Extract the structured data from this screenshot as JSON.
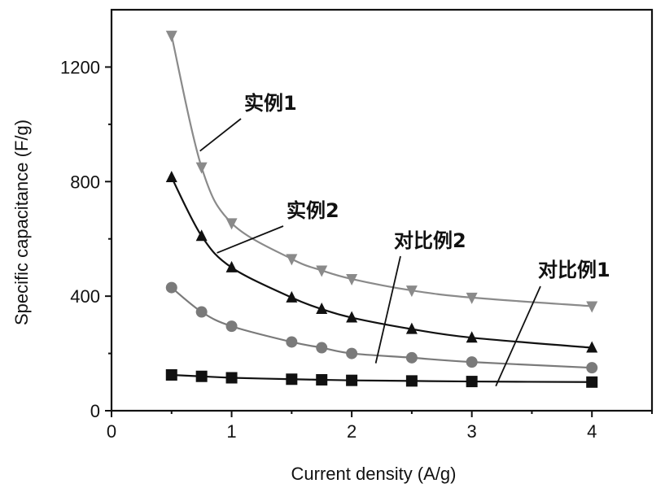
{
  "chart_data": {
    "type": "line",
    "title": "",
    "xlabel": "Current density  (A/g)",
    "ylabel": "Specific capacitance (F/g)",
    "xlim": [
      0,
      4.5
    ],
    "ylim": [
      0,
      1400
    ],
    "xticks": [
      0,
      1,
      2,
      3,
      4
    ],
    "yticks": [
      0,
      400,
      800,
      1200
    ],
    "x": [
      0.5,
      0.75,
      1,
      1.5,
      1.75,
      2,
      2.5,
      3,
      4
    ],
    "series": [
      {
        "name": "实例1",
        "marker": "triangle-down",
        "color": "#8a8a8a",
        "values": [
          1310,
          850,
          655,
          530,
          490,
          460,
          420,
          395,
          365
        ]
      },
      {
        "name": "实例2",
        "marker": "triangle-up",
        "color": "#111111",
        "values": [
          815,
          610,
          500,
          395,
          355,
          325,
          285,
          255,
          220
        ]
      },
      {
        "name": "对比例2",
        "marker": "circle",
        "color": "#7a7a7a",
        "values": [
          430,
          345,
          295,
          240,
          220,
          200,
          185,
          170,
          150
        ]
      },
      {
        "name": "对比例1",
        "marker": "square",
        "color": "#111111",
        "values": [
          125,
          120,
          115,
          110,
          108,
          106,
          104,
          102,
          100
        ]
      }
    ],
    "annotations": [
      {
        "text": "实例1",
        "series": 0,
        "target_x": 0.75
      },
      {
        "text": "实例2",
        "series": 1,
        "target_x": 1
      },
      {
        "text": "对比例2",
        "series": 2,
        "target_x": 2.2
      },
      {
        "text": "对比例1",
        "series": 3,
        "target_x": 3.2
      }
    ],
    "grid": false,
    "legend": "none"
  }
}
